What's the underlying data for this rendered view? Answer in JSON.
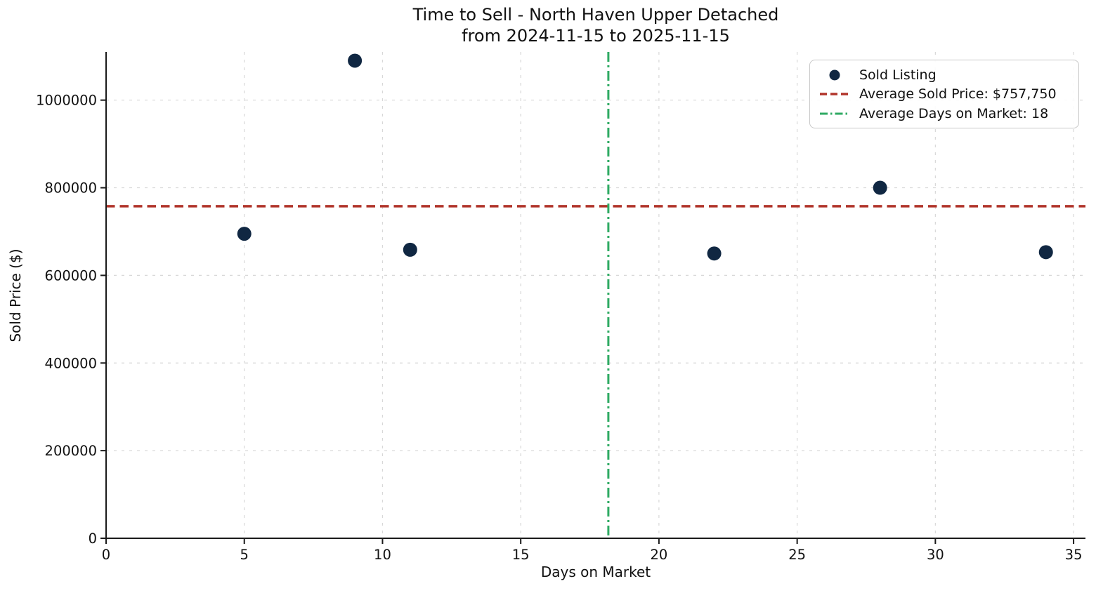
{
  "chart_data": {
    "type": "scatter",
    "title": "Time to Sell - North Haven Upper Detached",
    "subtitle": "from 2024-11-15 to 2025-11-15",
    "xlabel": "Days on Market",
    "ylabel": "Sold Price ($)",
    "xlim": [
      0,
      35.43
    ],
    "ylim": [
      0,
      1110000
    ],
    "xticks": [
      0,
      5,
      10,
      15,
      20,
      25,
      30,
      35
    ],
    "yticks": [
      0,
      200000,
      400000,
      600000,
      800000,
      1000000
    ],
    "grid": true,
    "legend_position": "upper right",
    "points": [
      {
        "x": 5,
        "y": 695000
      },
      {
        "x": 9,
        "y": 1090000
      },
      {
        "x": 11,
        "y": 658500
      },
      {
        "x": 22,
        "y": 650000
      },
      {
        "x": 28,
        "y": 800000
      },
      {
        "x": 34,
        "y": 653000
      }
    ],
    "average_sold_price": 757750,
    "average_days_on_market": 18.17,
    "colors": {
      "point": "#102742",
      "avg_price_line": "#b1352b",
      "avg_days_line": "#2faa63"
    },
    "legend": [
      {
        "label": "Sold Listing",
        "marker": "circle",
        "color": "#102742"
      },
      {
        "label": "Average Sold Price: $757,750",
        "marker": "dashed-line",
        "color": "#b1352b"
      },
      {
        "label": "Average Days on Market: 18",
        "marker": "dashdot-line",
        "color": "#2faa63"
      }
    ]
  }
}
